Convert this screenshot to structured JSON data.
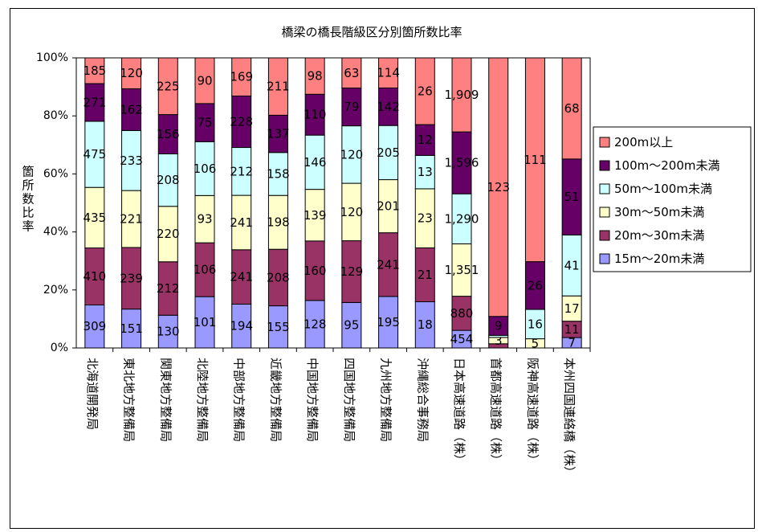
{
  "chart_data": {
    "type": "bar",
    "stacked": "percent",
    "title": "橋梁の橋長階級区分別箇所数比率",
    "xlabel": "",
    "ylabel": "箇所数比率",
    "ylim": [
      0,
      100
    ],
    "yticks": [
      "0%",
      "20%",
      "40%",
      "60%",
      "80%",
      "100%"
    ],
    "legend_position": "right",
    "grid": false,
    "categories": [
      "北海道開発局",
      "東北地方整備局",
      "関東地方整備局",
      "北陸地方整備局",
      "中部地方整備局",
      "近畿地方整備局",
      "中国地方整備局",
      "四国地方整備局",
      "九州地方整備局",
      "沖縄総合事務局",
      "日本高速道路（株）",
      "首都高速道路（株）",
      "阪神高速道路（株）",
      "本州四国連絡橋（株）"
    ],
    "series": [
      {
        "name": "15m～20m未満",
        "color": "#9999ff",
        "values": [
          309,
          151,
          130,
          101,
          194,
          155,
          128,
          95,
          195,
          18,
          454,
          0,
          0,
          7
        ],
        "labels": [
          "309",
          "151",
          "130",
          "101",
          "194",
          "155",
          "128",
          "95",
          "195",
          "18",
          "454",
          "",
          "",
          "7"
        ]
      },
      {
        "name": "20m～30m未満",
        "color": "#993366",
        "values": [
          410,
          239,
          212,
          106,
          241,
          208,
          160,
          129,
          241,
          21,
          880,
          2,
          0,
          11
        ],
        "labels": [
          "410",
          "239",
          "212",
          "106",
          "241",
          "208",
          "160",
          "129",
          "241",
          "21",
          "880",
          "",
          "",
          "11"
        ]
      },
      {
        "name": "30m～50m未満",
        "color": "#ffffcc",
        "values": [
          435,
          221,
          220,
          93,
          241,
          198,
          139,
          120,
          201,
          23,
          1351,
          3,
          5,
          17
        ],
        "labels": [
          "435",
          "221",
          "220",
          "93",
          "241",
          "198",
          "139",
          "120",
          "201",
          "23",
          "1,351",
          "3",
          "5",
          "17"
        ]
      },
      {
        "name": "50m～100m未満",
        "color": "#ccffff",
        "values": [
          475,
          233,
          208,
          106,
          212,
          158,
          146,
          120,
          205,
          13,
          1290,
          1,
          16,
          41
        ],
        "labels": [
          "475",
          "233",
          "208",
          "106",
          "212",
          "158",
          "146",
          "120",
          "205",
          "13",
          "1,290",
          "",
          "16",
          "41"
        ]
      },
      {
        "name": "100m～200m未満",
        "color": "#660066",
        "values": [
          271,
          162,
          156,
          75,
          228,
          137,
          110,
          79,
          142,
          12,
          1596,
          9,
          26,
          51
        ],
        "labels": [
          "271",
          "162",
          "156",
          "75",
          "228",
          "137",
          "110",
          "79",
          "142",
          "12",
          "1,596",
          "9",
          "26",
          "51"
        ]
      },
      {
        "name": "200m以上",
        "color": "#ff8080",
        "values": [
          185,
          120,
          225,
          90,
          169,
          211,
          98,
          63,
          114,
          26,
          1909,
          123,
          111,
          68
        ],
        "labels": [
          "185",
          "120",
          "225",
          "90",
          "169",
          "211",
          "98",
          "63",
          "114",
          "26",
          "1,909",
          "123",
          "111",
          "68"
        ]
      }
    ]
  }
}
